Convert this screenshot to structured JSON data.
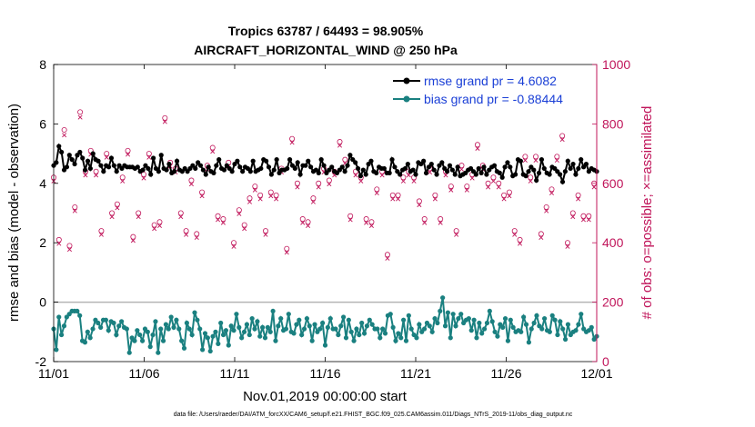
{
  "chart_data": {
    "type": "line",
    "title": "Tropics 63787 / 64493 = 98.905%",
    "subtitle": "AIRCRAFT_HORIZONTAL_WIND @ 250 hPa",
    "xlabel": "Nov.01,2019 00:00:00 start",
    "ylabel": "rmse and bias (model - observation)",
    "y2label": "# of obs: o=possible; ×=assimilated",
    "x_tick_labels": [
      "11/01",
      "11/06",
      "11/11",
      "11/16",
      "11/21",
      "11/26",
      "12/01"
    ],
    "y_tick_labels": [
      "-2",
      "0",
      "2",
      "4",
      "6",
      "8"
    ],
    "y2_tick_labels": [
      "0",
      "200",
      "400",
      "600",
      "800",
      "1000"
    ],
    "xlim": [
      0,
      30
    ],
    "ylim": [
      -2,
      8
    ],
    "y2lim": [
      0,
      1000
    ],
    "zero_line": 0,
    "legend_position": "top-right",
    "footer": "data file: /Users/raeder/DAI/ATM_forcXX/CAM6_setup/f.e21.FHIST_BGC.f09_025.CAM6assim.011/Diags_NTrS_2019-11/obs_diag_output.nc",
    "colors": {
      "rmse": "#000000",
      "bias": "#1a8080",
      "obs": "#c0155a",
      "zero": "#b4b4b4",
      "legend_text": "#1a3fd6"
    },
    "series": [
      {
        "name": "rmse grand pr = 4.6082",
        "axis": "left",
        "values": [
          4.6,
          4.7,
          5.25,
          5.05,
          4.45,
          4.55,
          4.95,
          4.8,
          4.65,
          4.95,
          5.05,
          4.85,
          4.45,
          4.75,
          4.5,
          5.0,
          4.8,
          4.75,
          4.6,
          4.4,
          4.6,
          4.55,
          4.85,
          4.6,
          4.4,
          4.6,
          4.5,
          4.6,
          4.55,
          4.55,
          4.55,
          4.5,
          4.55,
          4.4,
          4.45,
          4.6,
          4.5,
          4.3,
          4.85,
          4.5,
          4.4,
          4.95,
          4.5,
          4.45,
          4.65,
          4.35,
          4.4,
          4.75,
          4.45,
          4.4,
          4.5,
          4.4,
          4.5,
          4.6,
          4.5,
          4.7,
          4.6,
          4.45,
          4.3,
          4.55,
          4.4,
          4.35,
          4.6,
          4.8,
          4.5,
          4.45,
          4.6,
          4.5,
          4.4,
          4.65,
          4.75,
          4.55,
          4.4,
          4.55,
          4.5,
          4.4,
          4.75,
          4.4,
          4.45,
          4.5,
          4.8,
          4.75,
          4.55,
          4.3,
          4.45,
          4.8,
          4.35,
          4.45,
          4.45,
          4.5,
          4.8,
          4.6,
          4.5,
          4.7,
          4.3,
          4.6,
          4.6,
          4.75,
          4.55,
          4.4,
          4.45,
          4.35,
          4.8,
          4.6,
          4.35,
          4.45,
          4.55,
          4.4,
          4.35,
          4.45,
          4.55,
          4.4,
          4.6,
          4.95,
          4.8,
          4.7,
          4.5,
          4.25,
          4.45,
          4.3,
          4.65,
          4.75,
          4.4,
          4.35,
          4.55,
          4.5,
          4.5,
          4.35,
          4.35,
          4.8,
          4.55,
          4.4,
          4.3,
          4.45,
          4.5,
          4.65,
          4.4,
          4.45,
          4.3,
          4.7,
          4.65,
          4.75,
          4.35,
          4.55,
          4.65,
          4.45,
          4.3,
          4.6,
          4.7,
          4.5,
          4.4,
          4.6,
          4.45,
          4.3,
          4.55,
          4.25,
          4.3,
          4.35,
          4.45,
          4.5,
          4.4,
          4.3,
          4.5,
          4.35,
          4.55,
          4.3,
          4.45,
          4.55,
          4.6,
          4.4,
          4.35,
          4.2,
          4.55,
          4.7,
          4.55,
          4.25,
          4.3,
          4.8,
          4.75,
          4.3,
          4.25,
          4.4,
          4.55,
          4.45,
          4.1,
          4.35,
          4.8,
          4.5,
          4.35,
          4.3,
          4.55,
          4.5,
          4.4,
          4.3,
          4.05,
          4.4,
          4.75,
          4.5,
          4.65,
          4.3,
          4.5,
          4.8,
          4.55,
          4.65,
          4.4,
          4.5,
          4.45,
          4.4
        ]
      },
      {
        "name": "bias grand pr = -0.88444",
        "axis": "left",
        "values": [
          -0.9,
          -1.6,
          -0.5,
          -1.1,
          -0.8,
          -0.5,
          -0.4,
          -0.3,
          -0.3,
          -0.3,
          -0.45,
          -1.3,
          -1.35,
          -1.0,
          -1.2,
          -0.9,
          -0.6,
          -0.7,
          -0.85,
          -0.6,
          -0.6,
          -0.95,
          -0.65,
          -0.7,
          -1.1,
          -0.8,
          -0.65,
          -0.85,
          -0.9,
          -1.7,
          -1.2,
          -1.3,
          -0.95,
          -1.1,
          -1.3,
          -0.9,
          -1.0,
          -1.5,
          -1.1,
          -0.65,
          -1.7,
          -0.9,
          -1.3,
          -0.75,
          -0.9,
          -0.5,
          -0.85,
          -0.6,
          -0.9,
          -1.3,
          -1.55,
          -0.7,
          -0.9,
          -1.1,
          -0.35,
          -0.6,
          -0.9,
          -1.6,
          -1.05,
          -1.2,
          -1.65,
          -1.15,
          -1.0,
          -1.4,
          -0.7,
          -1.1,
          -0.95,
          -1.45,
          -0.8,
          -0.95,
          -0.4,
          -0.85,
          -1.2,
          -1.0,
          -0.75,
          -1.1,
          -0.55,
          -0.9,
          -0.65,
          -1.15,
          -0.85,
          -1.2,
          -0.85,
          -1.0,
          -0.3,
          -1.3,
          -0.8,
          -0.55,
          -0.95,
          -0.9,
          -0.4,
          -1.0,
          -1.05,
          -0.75,
          -0.6,
          -1.1,
          -0.9,
          -0.55,
          -0.8,
          -1.3,
          -0.75,
          -1.0,
          -0.9,
          -0.7,
          -1.45,
          -0.85,
          -0.55,
          -0.9,
          -0.9,
          -1.1,
          -0.8,
          -0.5,
          -1.2,
          -0.6,
          -1.0,
          -1.3,
          -0.9,
          -1.1,
          -0.7,
          -1.05,
          -0.8,
          -0.6,
          -0.75,
          -0.9,
          -0.9,
          -1.2,
          -0.9,
          -1.05,
          -0.45,
          -0.4,
          -0.85,
          -1.3,
          -1.05,
          -1.2,
          -0.6,
          -1.3,
          -0.45,
          -0.9,
          -1.1,
          -1.2,
          -0.75,
          -1.0,
          -0.9,
          -0.7,
          -0.8,
          -1.0,
          -0.55,
          -0.7,
          -0.3,
          0.15,
          -0.8,
          -0.35,
          -1.2,
          -0.4,
          -0.8,
          -0.55,
          -0.4,
          -0.7,
          -0.6,
          -0.55,
          -0.95,
          -0.6,
          -1.2,
          -0.7,
          -1.05,
          -0.9,
          -0.7,
          -0.3,
          -0.65,
          -1.0,
          -1.15,
          -0.75,
          -0.85,
          -0.55,
          -1.3,
          -0.6,
          -0.85,
          -1.0,
          -0.95,
          -1.0,
          -0.5,
          -0.75,
          -1.35,
          -0.9,
          -0.7,
          -0.45,
          -0.8,
          -0.9,
          -0.55,
          -0.95,
          -1.0,
          -0.45,
          -0.6,
          -1.1,
          -0.65,
          -0.9,
          -1.25,
          -0.75,
          -1.1,
          -1.0,
          -0.95,
          -0.75,
          -0.4,
          -0.9,
          -1.0,
          -0.95,
          -0.85,
          -1.25,
          -1.15
        ]
      },
      {
        "name": "# of obs possible",
        "axis": "right",
        "marker": "o",
        "values": [
          620,
          480,
          410,
          380,
          780,
          600,
          390,
          630,
          520,
          730,
          840,
          690,
          640,
          500,
          710,
          460,
          640,
          550,
          440,
          380,
          700,
          630,
          500,
          420,
          530,
          480,
          620,
          600,
          710,
          710,
          420,
          430,
          500,
          850,
          630,
          460,
          700,
          600,
          460,
          470,
          470,
          490,
          820,
          720,
          670,
          510,
          650,
          460,
          500,
          400,
          440,
          560,
          610,
          640,
          430,
          640,
          570,
          480,
          660,
          430,
          720,
          530,
          490,
          630,
          480,
          570,
          670,
          690,
          400,
          410,
          510,
          490,
          460,
          690,
          550,
          610,
          590,
          650,
          560,
          540,
          440,
          540,
          570,
          660,
          560,
          410,
          650,
          590,
          380,
          610,
          750,
          690,
          600,
          720,
          480,
          550,
          470,
          500,
          550,
          430,
          600,
          560,
          650,
          680,
          610,
          420,
          640,
          640,
          740,
          560,
          680,
          500,
          490,
          560,
          640,
          440,
          620,
          460,
          480,
          390,
          470,
          580,
          580,
          580,
          640,
          510,
          360,
          390,
          560,
          520,
          560,
          420,
          620,
          450,
          640,
          630,
          620,
          780,
          540,
          480,
          480,
          570,
          650,
          660,
          560,
          530,
          480,
          520,
          640,
          690,
          590,
          460,
          440,
          680,
          660,
          650,
          590,
          600,
          630,
          610,
          730,
          440,
          660,
          550,
          600,
          580,
          620,
          560,
          600,
          500,
          560,
          620,
          570,
          500,
          440,
          620,
          410,
          370,
          690,
          540,
          620,
          580,
          690,
          510,
          430,
          520,
          520,
          680,
          580,
          600,
          690,
          500,
          760,
          630,
          400,
          520,
          500,
          640,
          560,
          670,
          490,
          470,
          490,
          430,
          600,
          680
        ]
      },
      {
        "name": "# of obs assimilated",
        "axis": "right",
        "marker": "x",
        "values": [
          615,
          475,
          405,
          375,
          770,
          595,
          385,
          625,
          515,
          720,
          830,
          685,
          635,
          495,
          705,
          455,
          635,
          545,
          435,
          375,
          695,
          625,
          495,
          415,
          525,
          475,
          615,
          595,
          705,
          705,
          415,
          425,
          495,
          845,
          625,
          455,
          695,
          595,
          455,
          465,
          465,
          485,
          815,
          715,
          665,
          505,
          645,
          455,
          495,
          395,
          435,
          555,
          605,
          635,
          425,
          635,
          565,
          475,
          655,
          425,
          715,
          525,
          485,
          625,
          475,
          565,
          665,
          685,
          395,
          405,
          505,
          485,
          455,
          685,
          545,
          605,
          585,
          645,
          555,
          535,
          435,
          535,
          565,
          655,
          555,
          405,
          645,
          585,
          375,
          605,
          745,
          685,
          595,
          715,
          475,
          545,
          465,
          495,
          545,
          425,
          595,
          555,
          645,
          675,
          605,
          415,
          635,
          635,
          735,
          555,
          675,
          495,
          485,
          555,
          635,
          435,
          615,
          455,
          475,
          385,
          465,
          575,
          575,
          575,
          635,
          505,
          355,
          385,
          555,
          515,
          555,
          415,
          615,
          445,
          635,
          625,
          615,
          775,
          535,
          475,
          475,
          565,
          645,
          655,
          555,
          525,
          475,
          515,
          635,
          685,
          585,
          455,
          435,
          675,
          655,
          645,
          585,
          595,
          625,
          605,
          725,
          435,
          655,
          545,
          595,
          575,
          615,
          555,
          595,
          495,
          555,
          615,
          565,
          495,
          435,
          615,
          405,
          365,
          685,
          535,
          615,
          575,
          685,
          505,
          425,
          515,
          515,
          675,
          575,
          595,
          685,
          495,
          755,
          625,
          395,
          515,
          495,
          635,
          555,
          665,
          485,
          465,
          485,
          425,
          595,
          675
        ]
      }
    ]
  }
}
